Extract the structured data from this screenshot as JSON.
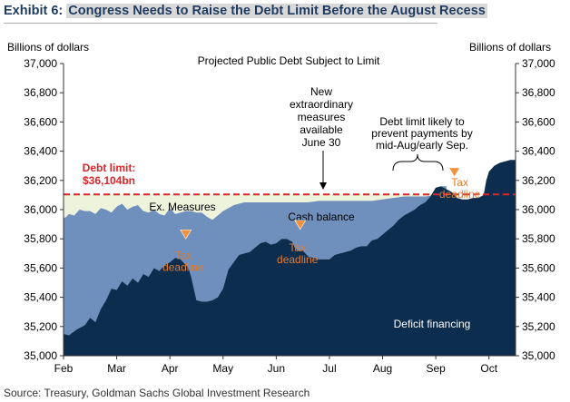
{
  "header": {
    "exhibit": "Exhibit 6:",
    "title": "Congress Needs to Raise the Debt Limit Before the August Recess"
  },
  "source": "Source: Treasury, Goldman Sachs Global Investment Research",
  "colors": {
    "deficit_financing": "#0d2d4f",
    "cash_balance": "#6f8fbd",
    "ex_measures": "#eef3db",
    "debt_limit": "#d9262b",
    "tax_marker": "#f0913d",
    "tax_text": "#e07b2e"
  },
  "chart_data": {
    "type": "area",
    "title": "Projected Public Debt Subject to Limit",
    "ylabel_left": "Billions of dollars",
    "ylabel_right": "Billions of dollars",
    "ylim": [
      35000,
      37000
    ],
    "yticks": [
      "37,000",
      "36,800",
      "36,600",
      "36,400",
      "36,200",
      "36,000",
      "35,800",
      "35,600",
      "35,400",
      "35,200",
      "35,000"
    ],
    "yticks_right": [
      "37,000",
      "36,800",
      "36,600",
      "36,400",
      "36,200",
      "36,000",
      "35,800",
      "35,600",
      "35,400",
      "35,200",
      "35,000"
    ],
    "ytick_values": [
      37000,
      36800,
      36600,
      36400,
      36200,
      36000,
      35800,
      35600,
      35400,
      35200,
      35000
    ],
    "xlim": [
      0,
      8.5
    ],
    "xticks": [
      "Feb",
      "Mar",
      "Apr",
      "May",
      "Jun",
      "Jul",
      "Aug",
      "Sep",
      "Oct"
    ],
    "xtick_values": [
      0,
      1,
      2,
      3,
      4,
      5,
      6,
      7,
      8
    ],
    "debt_limit": {
      "value": 36104,
      "label_line1": "Debt limit:",
      "label_line2": "$36,104bn"
    },
    "series": [
      {
        "name": "Deficit financing",
        "x": [
          0,
          0.1,
          0.25,
          0.4,
          0.5,
          0.6,
          0.7,
          0.8,
          0.9,
          1.0,
          1.1,
          1.2,
          1.3,
          1.4,
          1.5,
          1.6,
          1.7,
          1.8,
          1.9,
          2.0,
          2.1,
          2.2,
          2.3,
          2.35,
          2.4,
          2.5,
          2.6,
          2.7,
          2.8,
          2.9,
          3.0,
          3.1,
          3.2,
          3.3,
          3.4,
          3.5,
          3.6,
          3.7,
          3.8,
          3.9,
          4.0,
          4.1,
          4.2,
          4.3,
          4.35,
          4.4,
          4.5,
          4.6,
          4.7,
          4.8,
          4.9,
          5.0,
          5.1,
          5.2,
          5.3,
          5.4,
          5.5,
          5.6,
          5.7,
          5.8,
          5.9,
          6.0,
          6.1,
          6.2,
          6.3,
          6.4,
          6.5,
          6.6,
          6.7,
          6.8,
          6.9,
          7.0,
          7.1,
          7.2,
          7.3,
          7.4,
          7.5,
          7.6,
          7.7,
          7.8,
          7.9,
          7.95,
          8.0,
          8.1,
          8.2,
          8.3,
          8.4,
          8.5
        ],
        "values": [
          35150,
          35140,
          35180,
          35210,
          35260,
          35230,
          35320,
          35380,
          35460,
          35450,
          35510,
          35480,
          35530,
          35500,
          35560,
          35540,
          35600,
          35580,
          35620,
          35640,
          35670,
          35660,
          35620,
          35600,
          35540,
          35380,
          35370,
          35370,
          35380,
          35400,
          35460,
          35590,
          35640,
          35690,
          35700,
          35710,
          35740,
          35770,
          35780,
          35760,
          35770,
          35800,
          35800,
          35780,
          35740,
          35720,
          35720,
          35680,
          35670,
          35660,
          35660,
          35660,
          35690,
          35700,
          35710,
          35720,
          35740,
          35750,
          35750,
          35790,
          35800,
          35830,
          35860,
          35890,
          35930,
          35960,
          35980,
          36000,
          36030,
          36050,
          36090,
          36150,
          36160,
          36140,
          36120,
          36080,
          36070,
          36070,
          36080,
          36080,
          36100,
          36200,
          36260,
          36300,
          36320,
          36330,
          36340,
          36340
        ]
      },
      {
        "name": "Cash balance",
        "x": [
          0,
          0.05,
          0.1,
          0.2,
          0.3,
          0.4,
          0.5,
          0.6,
          0.7,
          0.8,
          0.9,
          1.0,
          1.1,
          1.2,
          1.3,
          1.4,
          1.5,
          1.6,
          1.7,
          1.8,
          1.9,
          2.0,
          2.1,
          2.2,
          2.3,
          2.4,
          2.5,
          2.6,
          2.7,
          2.8,
          2.9,
          3.0,
          3.1,
          3.2,
          3.3,
          3.4,
          3.5,
          3.6,
          3.7,
          3.8,
          3.9,
          4.0,
          4.2,
          4.4,
          4.6,
          4.8,
          5.0,
          5.2,
          5.4,
          5.6,
          5.8,
          6.0,
          6.2,
          6.4,
          6.6,
          6.8,
          7.0,
          7.1,
          7.2
        ],
        "values": [
          35940,
          35950,
          35970,
          35960,
          36000,
          35990,
          35990,
          35970,
          36010,
          36000,
          35980,
          36020,
          36040,
          36000,
          36020,
          36030,
          35990,
          35980,
          36000,
          35970,
          35960,
          36010,
          35970,
          35980,
          35990,
          35990,
          35980,
          35980,
          35950,
          35930,
          35960,
          35990,
          36010,
          36030,
          36040,
          36050,
          36050,
          36050,
          36050,
          36050,
          36050,
          36050,
          36050,
          36050,
          36050,
          36060,
          36060,
          36060,
          36060,
          36060,
          36060,
          36070,
          36080,
          36090,
          36090,
          36090,
          36100,
          36160,
          36160
        ]
      },
      {
        "name": "Ex. Measures",
        "values_top": 36104
      }
    ],
    "annotations": {
      "new_measures": [
        "New",
        "extraordinary",
        "measures",
        "available",
        "June 30"
      ],
      "likely_prevent": [
        "Debt limit likely to",
        "prevent  payments by",
        "mid-Aug/early Sep."
      ],
      "tax_deadlines": [
        {
          "x": 2.3,
          "y": 35750,
          "label1": "Tax",
          "label2": "deadline"
        },
        {
          "x": 4.45,
          "y": 35815,
          "label1": "Tax",
          "label2": "deadline"
        },
        {
          "x": 7.35,
          "y": 36175,
          "label1": "Tax",
          "label2": "deadline"
        }
      ],
      "ex_measures_label": "Ex. Measures",
      "cash_balance_label": "Cash balance",
      "deficit_financing_label": "Deficit financing"
    }
  }
}
